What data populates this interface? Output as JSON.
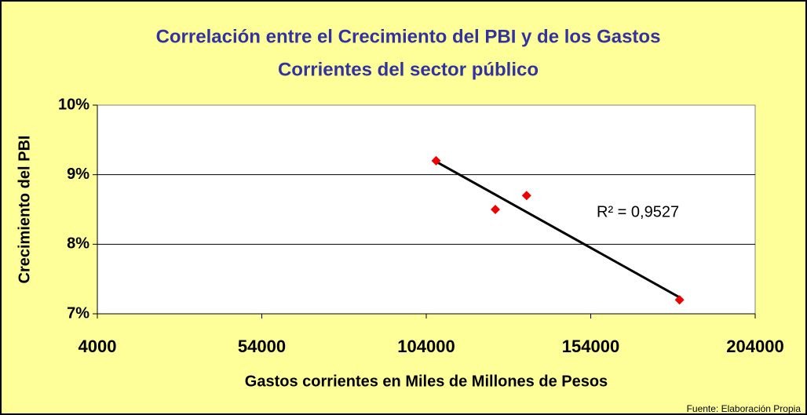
{
  "chart_data": {
    "type": "scatter",
    "title": [
      "Correlación entre el Crecimiento del PBI y de los Gastos",
      "Corrientes del sector público"
    ],
    "x_label": "Gastos corrientes en Miles de Millones de Pesos",
    "y_label": "Crecimiento del PBI",
    "annotation": "R² = 0,9527",
    "source": "Fuente: Elaboración Propia",
    "x": [
      107000,
      125000,
      134500,
      181000
    ],
    "values": [
      9.2,
      8.5,
      8.7,
      7.2
    ],
    "color": "#ee0000",
    "trendline_color": "#000000",
    "xlim": [
      4000,
      204000
    ],
    "xticks": [
      4000,
      54000,
      104000,
      154000,
      204000
    ],
    "ylim": [
      7,
      10
    ],
    "yticks": [
      {
        "value": 7,
        "label": "7%"
      },
      {
        "value": 8,
        "label": "8%"
      },
      {
        "value": 9,
        "label": "9%"
      },
      {
        "value": 10,
        "label": "10%"
      }
    ],
    "grid": true
  }
}
